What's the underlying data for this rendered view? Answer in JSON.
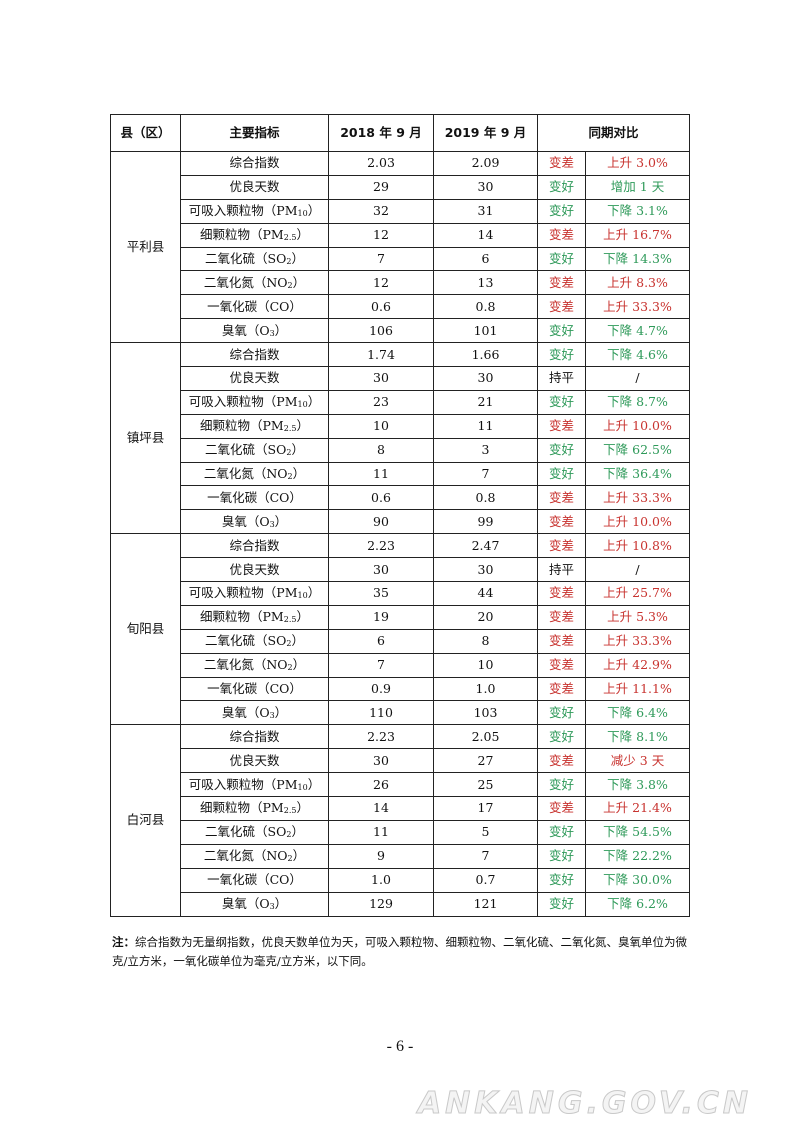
{
  "table": {
    "headers": [
      "县（区）",
      "主要指标",
      "2018 年 9 月",
      "2019 年 9 月",
      "同期对比"
    ],
    "counties": [
      {
        "name": "平利县",
        "rows": [
          {
            "indicator": "综合指数",
            "sub": "",
            "suffix": "",
            "v2018": "2.03",
            "v2019": "2.09",
            "trend": "变差",
            "change": "上升 3.0%",
            "status": "bad"
          },
          {
            "indicator": "优良天数",
            "sub": "",
            "suffix": "",
            "v2018": "29",
            "v2019": "30",
            "trend": "变好",
            "change": "增加 1 天",
            "status": "good"
          },
          {
            "indicator": "可吸入颗粒物（PM",
            "sub": "10",
            "suffix": "）",
            "v2018": "32",
            "v2019": "31",
            "trend": "变好",
            "change": "下降 3.1%",
            "status": "good"
          },
          {
            "indicator": "细颗粒物（PM",
            "sub": "2.5",
            "suffix": "）",
            "v2018": "12",
            "v2019": "14",
            "trend": "变差",
            "change": "上升 16.7%",
            "status": "bad"
          },
          {
            "indicator": "二氧化硫（SO",
            "sub": "2",
            "suffix": "）",
            "v2018": "7",
            "v2019": "6",
            "trend": "变好",
            "change": "下降 14.3%",
            "status": "good"
          },
          {
            "indicator": "二氧化氮（NO",
            "sub": "2",
            "suffix": "）",
            "v2018": "12",
            "v2019": "13",
            "trend": "变差",
            "change": "上升 8.3%",
            "status": "bad"
          },
          {
            "indicator": "一氧化碳（CO）",
            "sub": "",
            "suffix": "",
            "v2018": "0.6",
            "v2019": "0.8",
            "trend": "变差",
            "change": "上升 33.3%",
            "status": "bad"
          },
          {
            "indicator": "臭氧（O",
            "sub": "3",
            "suffix": "）",
            "v2018": "106",
            "v2019": "101",
            "trend": "变好",
            "change": "下降 4.7%",
            "status": "good"
          }
        ]
      },
      {
        "name": "镇坪县",
        "rows": [
          {
            "indicator": "综合指数",
            "sub": "",
            "suffix": "",
            "v2018": "1.74",
            "v2019": "1.66",
            "trend": "变好",
            "change": "下降 4.6%",
            "status": "good"
          },
          {
            "indicator": "优良天数",
            "sub": "",
            "suffix": "",
            "v2018": "30",
            "v2019": "30",
            "trend": "持平",
            "change": "/",
            "status": "flat"
          },
          {
            "indicator": "可吸入颗粒物（PM",
            "sub": "10",
            "suffix": "）",
            "v2018": "23",
            "v2019": "21",
            "trend": "变好",
            "change": "下降 8.7%",
            "status": "good"
          },
          {
            "indicator": "细颗粒物（PM",
            "sub": "2.5",
            "suffix": "）",
            "v2018": "10",
            "v2019": "11",
            "trend": "变差",
            "change": "上升 10.0%",
            "status": "bad"
          },
          {
            "indicator": "二氧化硫（SO",
            "sub": "2",
            "suffix": "）",
            "v2018": "8",
            "v2019": "3",
            "trend": "变好",
            "change": "下降 62.5%",
            "status": "good"
          },
          {
            "indicator": "二氧化氮（NO",
            "sub": "2",
            "suffix": "）",
            "v2018": "11",
            "v2019": "7",
            "trend": "变好",
            "change": "下降 36.4%",
            "status": "good"
          },
          {
            "indicator": "一氧化碳（CO）",
            "sub": "",
            "suffix": "",
            "v2018": "0.6",
            "v2019": "0.8",
            "trend": "变差",
            "change": "上升 33.3%",
            "status": "bad"
          },
          {
            "indicator": "臭氧（O",
            "sub": "3",
            "suffix": "）",
            "v2018": "90",
            "v2019": "99",
            "trend": "变差",
            "change": "上升 10.0%",
            "status": "bad"
          }
        ]
      },
      {
        "name": "旬阳县",
        "rows": [
          {
            "indicator": "综合指数",
            "sub": "",
            "suffix": "",
            "v2018": "2.23",
            "v2019": "2.47",
            "trend": "变差",
            "change": "上升 10.8%",
            "status": "bad"
          },
          {
            "indicator": "优良天数",
            "sub": "",
            "suffix": "",
            "v2018": "30",
            "v2019": "30",
            "trend": "持平",
            "change": "/",
            "status": "flat"
          },
          {
            "indicator": "可吸入颗粒物（PM",
            "sub": "10",
            "suffix": "）",
            "v2018": "35",
            "v2019": "44",
            "trend": "变差",
            "change": "上升 25.7%",
            "status": "bad"
          },
          {
            "indicator": "细颗粒物（PM",
            "sub": "2.5",
            "suffix": "）",
            "v2018": "19",
            "v2019": "20",
            "trend": "变差",
            "change": "上升 5.3%",
            "status": "bad"
          },
          {
            "indicator": "二氧化硫（SO",
            "sub": "2",
            "suffix": "）",
            "v2018": "6",
            "v2019": "8",
            "trend": "变差",
            "change": "上升 33.3%",
            "status": "bad"
          },
          {
            "indicator": "二氧化氮（NO",
            "sub": "2",
            "suffix": "）",
            "v2018": "7",
            "v2019": "10",
            "trend": "变差",
            "change": "上升 42.9%",
            "status": "bad"
          },
          {
            "indicator": "一氧化碳（CO）",
            "sub": "",
            "suffix": "",
            "v2018": "0.9",
            "v2019": "1.0",
            "trend": "变差",
            "change": "上升 11.1%",
            "status": "bad"
          },
          {
            "indicator": "臭氧（O",
            "sub": "3",
            "suffix": "）",
            "v2018": "110",
            "v2019": "103",
            "trend": "变好",
            "change": "下降 6.4%",
            "status": "good"
          }
        ]
      },
      {
        "name": "白河县",
        "rows": [
          {
            "indicator": "综合指数",
            "sub": "",
            "suffix": "",
            "v2018": "2.23",
            "v2019": "2.05",
            "trend": "变好",
            "change": "下降 8.1%",
            "status": "good"
          },
          {
            "indicator": "优良天数",
            "sub": "",
            "suffix": "",
            "v2018": "30",
            "v2019": "27",
            "trend": "变差",
            "change": "减少 3 天",
            "status": "bad"
          },
          {
            "indicator": "可吸入颗粒物（PM",
            "sub": "10",
            "suffix": "）",
            "v2018": "26",
            "v2019": "25",
            "trend": "变好",
            "change": "下降 3.8%",
            "status": "good"
          },
          {
            "indicator": "细颗粒物（PM",
            "sub": "2.5",
            "suffix": "）",
            "v2018": "14",
            "v2019": "17",
            "trend": "变差",
            "change": "上升 21.4%",
            "status": "bad"
          },
          {
            "indicator": "二氧化硫（SO",
            "sub": "2",
            "suffix": "）",
            "v2018": "11",
            "v2019": "5",
            "trend": "变好",
            "change": "下降 54.5%",
            "status": "good"
          },
          {
            "indicator": "二氧化氮（NO",
            "sub": "2",
            "suffix": "）",
            "v2018": "9",
            "v2019": "7",
            "trend": "变好",
            "change": "下降 22.2%",
            "status": "good"
          },
          {
            "indicator": "一氧化碳（CO）",
            "sub": "",
            "suffix": "",
            "v2018": "1.0",
            "v2019": "0.7",
            "trend": "变好",
            "change": "下降 30.0%",
            "status": "good"
          },
          {
            "indicator": "臭氧（O",
            "sub": "3",
            "suffix": "）",
            "v2018": "129",
            "v2019": "121",
            "trend": "变好",
            "change": "下降 6.2%",
            "status": "good"
          }
        ]
      }
    ]
  },
  "note": {
    "label": "注：",
    "text": "综合指数为无量纲指数，优良天数单位为天，可吸入颗粒物、细颗粒物、二氧化硫、二氧化氮、臭氧单位为微克/立方米，一氧化碳单位为毫克/立方米，以下同。"
  },
  "page_number": "- 6 -",
  "watermark": "ANKANG.GOV.CN",
  "colors": {
    "good": "#2f9a5a",
    "bad": "#c8332f"
  }
}
